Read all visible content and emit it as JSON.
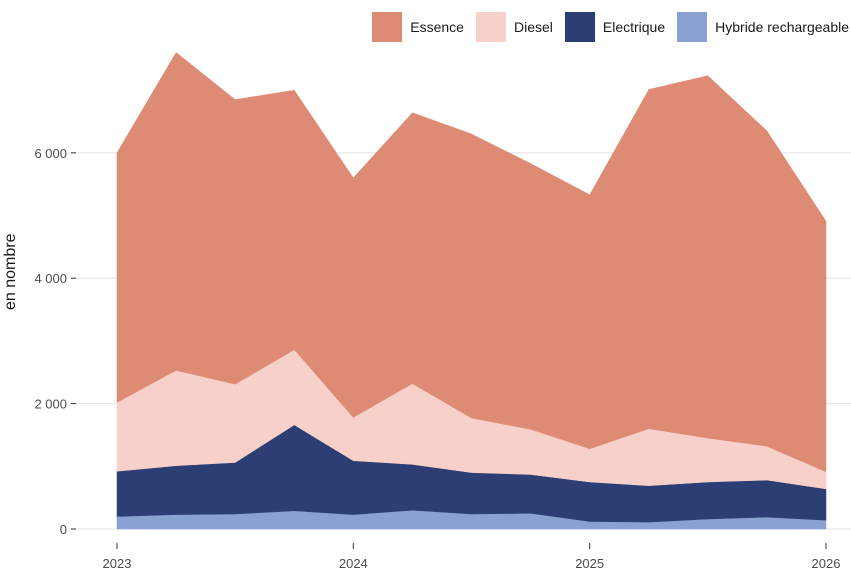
{
  "chart_data": {
    "type": "area",
    "stacked": true,
    "title": "",
    "xlabel": "",
    "ylabel": "en nombre",
    "x": [
      2023.0,
      2023.25,
      2023.5,
      2023.75,
      2024.0,
      2024.25,
      2024.5,
      2024.75,
      2025.0,
      2025.25,
      2025.5,
      2025.75,
      2026.0
    ],
    "x_ticks": [
      "2023",
      "2024",
      "2025",
      "2026"
    ],
    "y_ticks": [
      "0",
      "2 000",
      "4 000",
      "6 000"
    ],
    "ylim": [
      0,
      7800
    ],
    "xlim": [
      2023,
      2026
    ],
    "grid": true,
    "legend_position": "top-right",
    "series": [
      {
        "name": "Hybride rechargeable",
        "color": "#8aa1d1",
        "values": [
          200,
          230,
          240,
          290,
          230,
          300,
          240,
          250,
          120,
          110,
          160,
          190,
          140
        ]
      },
      {
        "name": "Electrique",
        "color": "#2c3e73",
        "values": [
          720,
          780,
          820,
          1370,
          860,
          730,
          660,
          620,
          630,
          580,
          590,
          590,
          500
        ]
      },
      {
        "name": "Diesel",
        "color": "#f8d0ca",
        "values": [
          1100,
          1520,
          1250,
          1200,
          690,
          1290,
          870,
          720,
          530,
          910,
          700,
          540,
          270
        ]
      },
      {
        "name": "Essence",
        "color": "#de8b75",
        "values": [
          3980,
          5070,
          4540,
          4140,
          3820,
          4320,
          4530,
          4240,
          4050,
          5410,
          5780,
          5030,
          4000
        ]
      }
    ]
  }
}
